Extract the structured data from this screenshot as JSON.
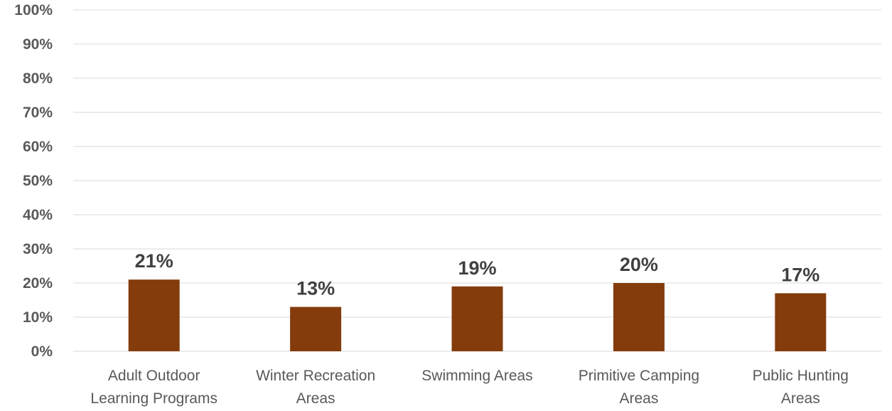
{
  "chart_data": {
    "type": "bar",
    "categories": [
      [
        "Adult Outdoor",
        "Learning Programs"
      ],
      [
        "Winter Recreation",
        "Areas"
      ],
      [
        "Swimming Areas"
      ],
      [
        "Primitive Camping",
        "Areas"
      ],
      [
        "Public Hunting",
        "Areas"
      ]
    ],
    "values": [
      21,
      13,
      19,
      20,
      17
    ],
    "data_labels": [
      "21%",
      "13%",
      "19%",
      "20%",
      "17%"
    ],
    "yticks": [
      "0%",
      "10%",
      "20%",
      "30%",
      "40%",
      "50%",
      "60%",
      "70%",
      "80%",
      "90%",
      "100%"
    ],
    "ylim": [
      0,
      100
    ],
    "bar_color": "#843C0C",
    "grid": true,
    "title": "",
    "xlabel": "",
    "ylabel": ""
  }
}
